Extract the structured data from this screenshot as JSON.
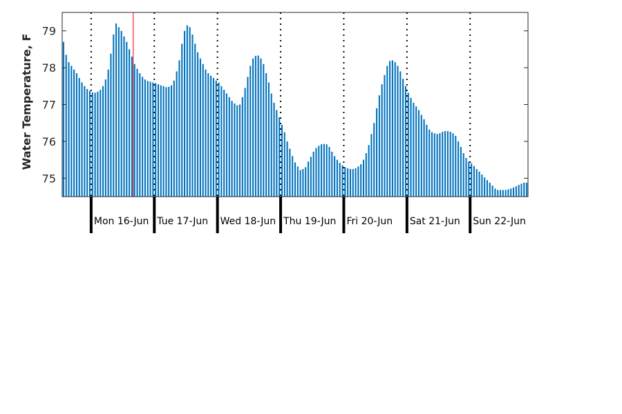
{
  "chart_data": {
    "type": "bar",
    "ylabel": "Water Temperature, F",
    "xlabel": "",
    "title": "",
    "ylim": [
      74.5,
      79.5
    ],
    "yticks": [
      75,
      76,
      77,
      78,
      79
    ],
    "hours_per_bar": 1,
    "start_hour_offset": -11,
    "days": [
      "Mon 16-Jun",
      "Tue 17-Jun",
      "Wed 18-Jun",
      "Thu 19-Jun",
      "Fri 20-Jun",
      "Sat 21-Jun",
      "Sun 22-Jun"
    ],
    "current_time_hour": 16,
    "values": [
      78.7,
      78.35,
      78.15,
      78.05,
      77.95,
      77.85,
      77.72,
      77.6,
      77.5,
      77.42,
      77.37,
      77.33,
      77.32,
      77.35,
      77.4,
      77.5,
      77.68,
      77.95,
      78.38,
      78.9,
      79.2,
      79.1,
      79.0,
      78.85,
      78.7,
      78.5,
      78.3,
      78.1,
      77.97,
      77.85,
      77.75,
      77.68,
      77.64,
      77.62,
      77.6,
      77.58,
      77.55,
      77.52,
      77.5,
      77.47,
      77.48,
      77.52,
      77.65,
      77.9,
      78.2,
      78.65,
      79.0,
      79.15,
      79.1,
      78.9,
      78.65,
      78.42,
      78.25,
      78.1,
      77.95,
      77.85,
      77.78,
      77.72,
      77.65,
      77.6,
      77.5,
      77.4,
      77.3,
      77.2,
      77.1,
      77.03,
      76.98,
      77.0,
      77.2,
      77.45,
      77.75,
      78.05,
      78.25,
      78.32,
      78.33,
      78.25,
      78.1,
      77.85,
      77.6,
      77.3,
      77.05,
      76.85,
      76.65,
      76.45,
      76.25,
      76.0,
      75.8,
      75.6,
      75.43,
      75.32,
      75.22,
      75.25,
      75.3,
      75.45,
      75.58,
      75.72,
      75.82,
      75.88,
      75.92,
      75.93,
      75.92,
      75.85,
      75.72,
      75.6,
      75.5,
      75.42,
      75.35,
      75.3,
      75.27,
      75.25,
      75.25,
      75.27,
      75.32,
      75.38,
      75.5,
      75.68,
      75.9,
      76.2,
      76.5,
      76.9,
      77.25,
      77.55,
      77.8,
      78.05,
      78.18,
      78.2,
      78.15,
      78.05,
      77.9,
      77.7,
      77.5,
      77.32,
      77.18,
      77.05,
      76.95,
      76.85,
      76.72,
      76.6,
      76.45,
      76.32,
      76.25,
      76.22,
      76.2,
      76.22,
      76.26,
      76.28,
      76.28,
      76.26,
      76.22,
      76.15,
      76.0,
      75.85,
      75.68,
      75.55,
      75.45,
      75.4,
      75.33,
      75.25,
      75.18,
      75.1,
      75.02,
      74.95,
      74.88,
      74.8,
      74.72,
      74.68,
      74.68,
      74.68,
      74.68,
      74.7,
      74.72,
      74.75,
      74.78,
      74.82,
      74.85,
      74.88,
      74.88
    ]
  }
}
